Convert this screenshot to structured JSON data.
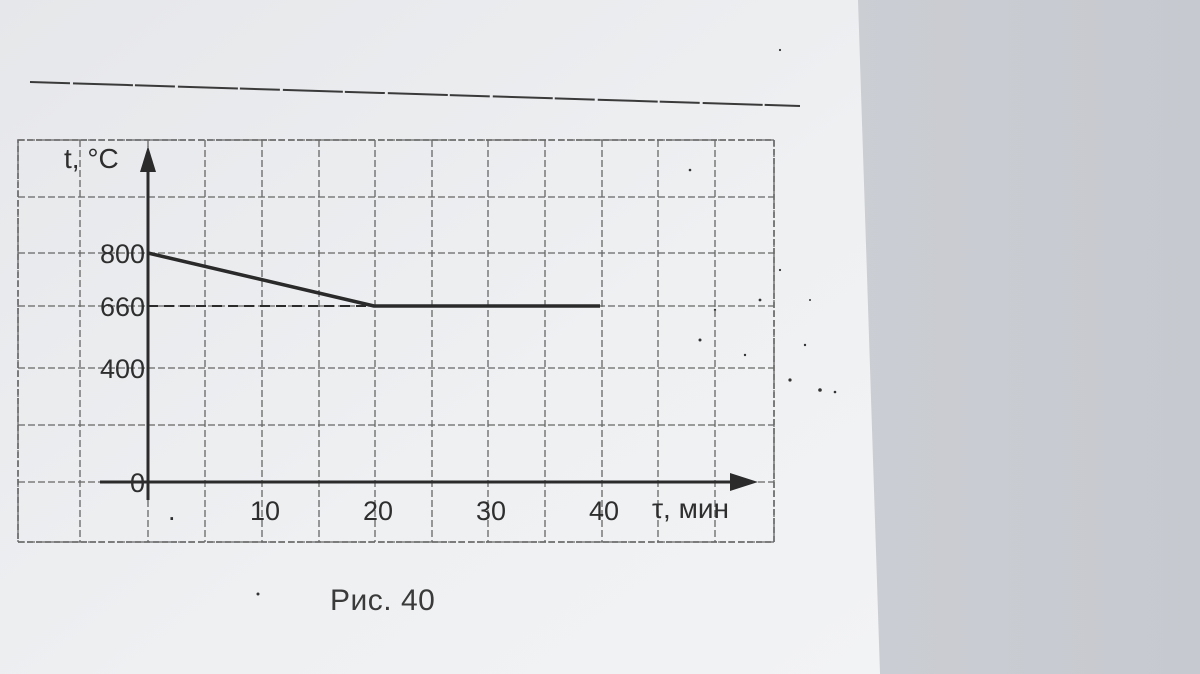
{
  "figure": {
    "caption": "Рис. 40"
  },
  "chart_data": {
    "type": "line",
    "xlabel": "τ, мин",
    "ylabel": "t, °C",
    "x_ticks": [
      "10",
      "20",
      "30",
      "40"
    ],
    "y_ticks": [
      "0",
      "400",
      "660",
      "800"
    ],
    "xlim": [
      0,
      40
    ],
    "grid": true,
    "series": [
      {
        "x": [
          0,
          20,
          40
        ],
        "y": [
          800,
          660,
          660
        ]
      }
    ],
    "reference_lines": [
      {
        "axis": "y",
        "value": 660,
        "style": "dashed"
      }
    ]
  }
}
